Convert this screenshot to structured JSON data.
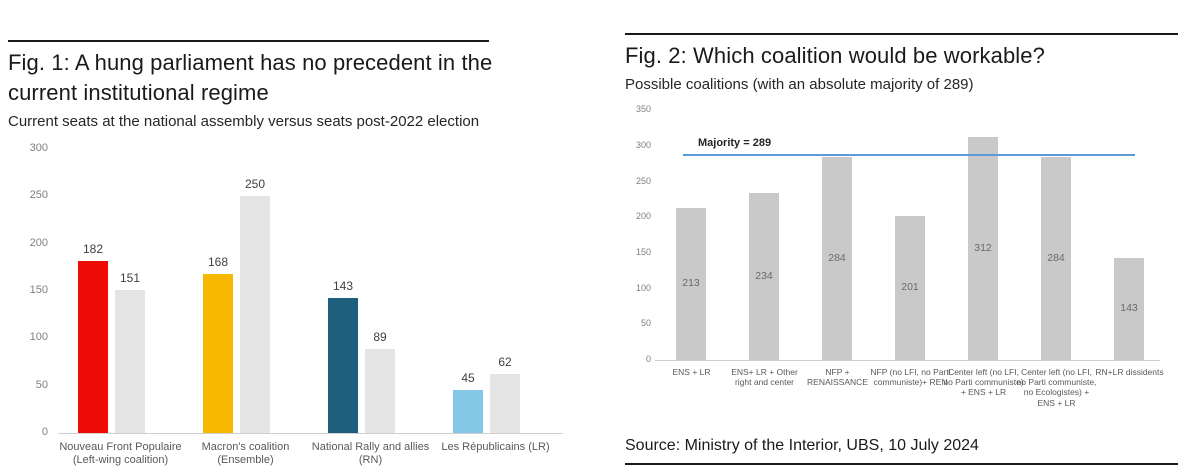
{
  "chart_data": [
    {
      "type": "bar",
      "title": "Fig. 1: A hung parliament has no precedent in the current institutional regime",
      "subtitle": "Current seats at the national assembly versus seats post-2022 election",
      "categories": [
        "Nouveau Front Populaire (Left-wing coalition)",
        "Macron's coalition (Ensemble)",
        "National Rally and allies (RN)",
        "Les Républicains (LR)"
      ],
      "series": [
        {
          "values": [
            182,
            168,
            143,
            45
          ],
          "colors": [
            "#ee0a05",
            "#f8b800",
            "#1e5f7e",
            "#85c7e6"
          ]
        },
        {
          "values": [
            151,
            250,
            89,
            62
          ],
          "color": "#e4e4e4"
        }
      ],
      "ylim": [
        0,
        300
      ],
      "ytick_step": 50,
      "grid": false,
      "legend": "none",
      "value_labels": "above"
    },
    {
      "type": "bar",
      "title": "Fig. 2: Which coalition would be workable?",
      "subtitle": "Possible coalitions (with an absolute majority of 289)",
      "categories": [
        "ENS + LR",
        "ENS+ LR + Other right and center",
        "NFP + RENAISSANCE",
        "NFP (no LFI, no Parti communiste)+ REN",
        "Center left (no LFI, no Parti communiste) + ENS + LR",
        "Center left (no LFI, no Parti communiste, no Ecologistes) + ENS + LR",
        "RN+LR dissidents"
      ],
      "values": [
        213,
        234,
        284,
        201,
        312,
        284,
        143
      ],
      "bar_color": "#c9c9c9",
      "ylim": [
        0,
        350
      ],
      "ytick_step": 50,
      "grid": false,
      "legend": "none",
      "value_labels": "inside",
      "reference_line": {
        "value": 289,
        "label": "Majority = 289",
        "color": "#5b9bd5"
      }
    }
  ],
  "source": "Source: Ministry of the Interior, UBS, 10 July 2024"
}
